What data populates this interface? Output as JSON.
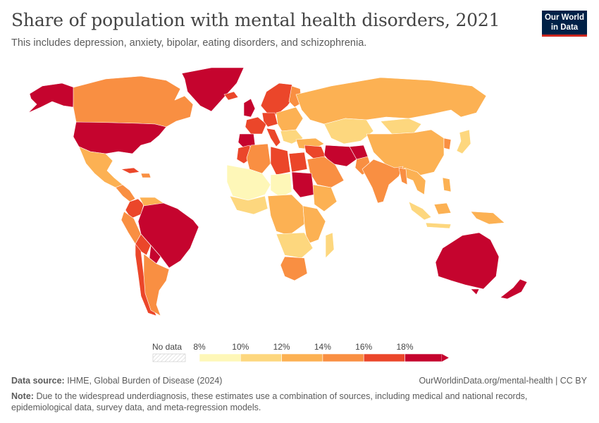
{
  "header": {
    "title": "Share of population with mental health disorders, 2021",
    "subtitle": "This includes depression, anxiety, bipolar, eating disorders, and schizophrenia."
  },
  "logo": {
    "line1": "Our World",
    "line2": "in Data",
    "bg": "#002147",
    "accent": "#ce261e"
  },
  "legend": {
    "no_data_label": "No data",
    "ticks": [
      "8%",
      "10%",
      "12%",
      "14%",
      "16%",
      "18%"
    ],
    "bins": [
      "#fef7b8",
      "#fdd77e",
      "#fcb153",
      "#f98f42",
      "#eb462a",
      "#c5042e"
    ]
  },
  "footer": {
    "source_label": "Data source:",
    "source_text": "IHME, Global Burden of Disease (2024)",
    "url": "OurWorldinData.org/mental-health | CC BY",
    "note_label": "Note:",
    "note_text": "Due to the widespread underdiagnosis, these estimates use a combination of sources, including medical and national records, epidemiological data, survey data, and meta-regression models."
  }
}
